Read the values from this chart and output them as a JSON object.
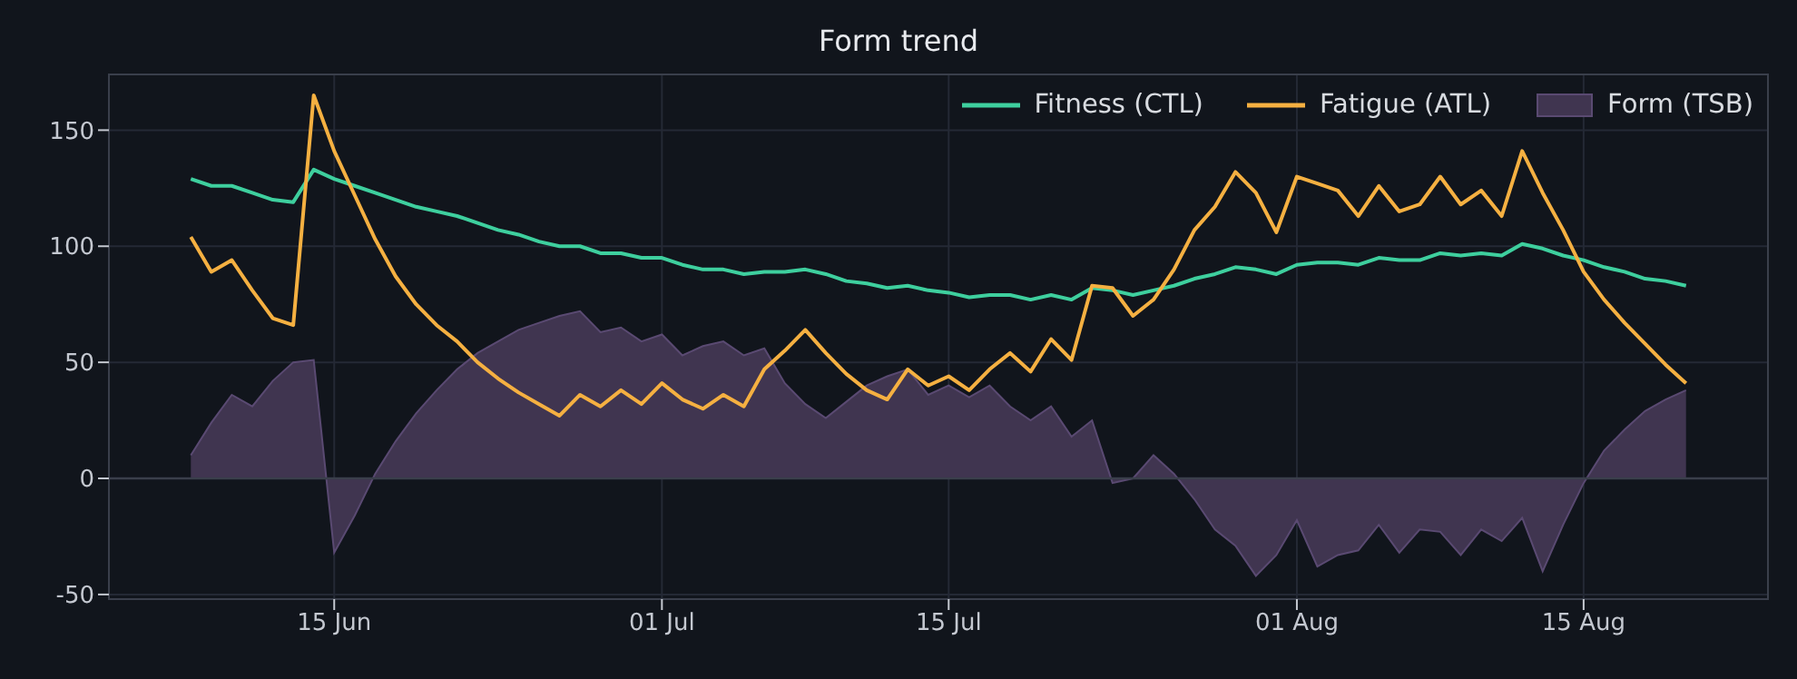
{
  "chart_data": {
    "type": "line",
    "title": "Form trend",
    "x": [
      "--06-08",
      "--06-09",
      "--06-10",
      "--06-11",
      "--06-12",
      "--06-13",
      "--06-14",
      "--06-15",
      "--06-16",
      "--06-17",
      "--06-18",
      "--06-19",
      "--06-20",
      "--06-21",
      "--06-22",
      "--06-23",
      "--06-24",
      "--06-25",
      "--06-26",
      "--06-27",
      "--06-28",
      "--06-29",
      "--06-30",
      "--07-01",
      "--07-02",
      "--07-03",
      "--07-04",
      "--07-05",
      "--07-06",
      "--07-07",
      "--07-08",
      "--07-09",
      "--07-10",
      "--07-11",
      "--07-12",
      "--07-13",
      "--07-14",
      "--07-15",
      "--07-16",
      "--07-17",
      "--07-18",
      "--07-19",
      "--07-20",
      "--07-21",
      "--07-22",
      "--07-23",
      "--07-24",
      "--07-25",
      "--07-26",
      "--07-27",
      "--07-28",
      "--07-29",
      "--07-30",
      "--07-31",
      "--08-01",
      "--08-02",
      "--08-03",
      "--08-04",
      "--08-05",
      "--08-06",
      "--08-07",
      "--08-08",
      "--08-09",
      "--08-10",
      "--08-11",
      "--08-12",
      "--08-13",
      "--08-14",
      "--08-15",
      "--08-16",
      "--08-17",
      "--08-18",
      "--08-19",
      "--08-20"
    ],
    "series": [
      {
        "name": "Form (TSB)",
        "type": "area",
        "color": "#403550",
        "values": [
          10,
          24,
          36,
          31,
          42,
          50,
          51,
          -32,
          -16,
          2,
          16,
          28,
          38,
          47,
          54,
          59,
          64,
          67,
          70,
          72,
          63,
          65,
          59,
          62,
          53,
          57,
          59,
          53,
          56,
          41,
          32,
          26,
          33,
          40,
          44,
          47,
          36,
          40,
          35,
          40,
          31,
          25,
          31,
          18,
          25,
          -2,
          0,
          10,
          2,
          -9,
          -22,
          -29,
          -42,
          -33,
          -18,
          -38,
          -33,
          -31,
          -20,
          -32,
          -22,
          -23,
          -33,
          -22,
          -27,
          -17,
          -40,
          -20,
          -2,
          12,
          21,
          29,
          34,
          38
        ]
      },
      {
        "name": "Fitness (CTL)",
        "color": "#3ecf9e",
        "values": [
          129,
          126,
          126,
          123,
          120,
          119,
          133,
          129,
          126,
          123,
          120,
          117,
          115,
          113,
          110,
          107,
          105,
          102,
          100,
          100,
          97,
          97,
          95,
          95,
          92,
          90,
          90,
          88,
          89,
          89,
          90,
          88,
          85,
          84,
          82,
          83,
          81,
          80,
          78,
          79,
          79,
          77,
          79,
          77,
          82,
          81,
          79,
          81,
          83,
          86,
          88,
          91,
          90,
          88,
          92,
          93,
          93,
          92,
          95,
          94,
          94,
          97,
          96,
          97,
          96,
          101,
          99,
          96,
          94,
          91,
          89,
          86,
          85,
          83
        ]
      },
      {
        "name": "Fatigue (ATL)",
        "color": "#f5b041",
        "values": [
          104,
          89,
          94,
          81,
          69,
          66,
          165,
          141,
          122,
          103,
          87,
          75,
          66,
          59,
          50,
          43,
          37,
          32,
          27,
          36,
          31,
          38,
          32,
          41,
          34,
          30,
          36,
          31,
          47,
          55,
          64,
          54,
          45,
          38,
          34,
          47,
          40,
          44,
          38,
          47,
          54,
          46,
          60,
          51,
          83,
          82,
          70,
          77,
          90,
          107,
          117,
          132,
          123,
          106,
          130,
          127,
          124,
          113,
          126,
          115,
          118,
          130,
          118,
          124,
          113,
          141,
          123,
          107,
          89,
          77,
          67,
          58,
          49,
          41
        ]
      }
    ],
    "xlim": [
      "--06-04",
      "--08-24"
    ],
    "xticks": [
      {
        "value": "--06-15",
        "label": "15 Jun"
      },
      {
        "value": "--07-01",
        "label": "01 Jul"
      },
      {
        "value": "--07-15",
        "label": "15 Jul"
      },
      {
        "value": "--08-01",
        "label": "01 Aug"
      },
      {
        "value": "--08-15",
        "label": "15 Aug"
      }
    ],
    "ylim": [
      -52,
      174
    ],
    "yticks": [
      -50,
      0,
      50,
      100,
      150
    ],
    "ref_lines": [
      {
        "axis": "y",
        "value": 0,
        "color": "#3a3f4b"
      }
    ],
    "grid": true,
    "legend": "top right"
  }
}
